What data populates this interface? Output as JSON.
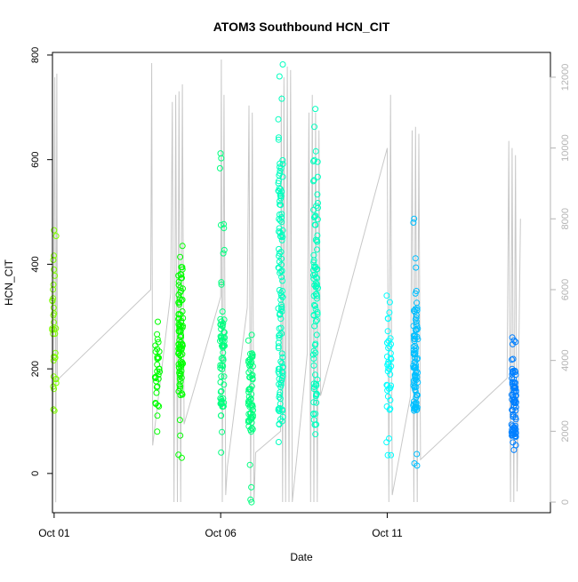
{
  "chart_data": {
    "type": "scatter",
    "title": "ATOM3 Southbound HCN_CIT",
    "xlabel": "Date",
    "ylabel": "HCN_CIT",
    "x_ticks": [
      "Oct 01",
      "Oct 06",
      "Oct 11"
    ],
    "x_tick_days": [
      1,
      6,
      11
    ],
    "xlim_days": [
      0.95,
      15.9
    ],
    "ylim": [
      -75,
      805
    ],
    "y_ticks": [
      0,
      200,
      400,
      600,
      800
    ],
    "y2lim": [
      -300,
      12700
    ],
    "y2_ticks": [
      0,
      2000,
      4000,
      6000,
      8000,
      10000,
      12000
    ],
    "grid": false,
    "legend": "none",
    "colors": {
      "altitude_line": "#c8c8c8",
      "axis": "#000000",
      "right_axis": "#b4b4b4",
      "point_palette": [
        "#7fff00",
        "#00ff00",
        "#00ff7f",
        "#00ffbf",
        "#00ffff",
        "#00bfff",
        "#007fff"
      ]
    },
    "point_series": [
      {
        "day": 1.0,
        "min": 120,
        "max": 465,
        "core_min": 160,
        "core_max": 420,
        "n": 34
      },
      {
        "day": 4.1,
        "min": 80,
        "max": 290,
        "core_min": 130,
        "core_max": 260,
        "n": 32
      },
      {
        "day": 4.8,
        "min": 30,
        "max": 435,
        "core_min": 150,
        "core_max": 400,
        "n": 95
      },
      {
        "day": 6.05,
        "min": 40,
        "max": 612,
        "core_min": 110,
        "core_max": 300,
        "n": 70
      },
      {
        "day": 6.9,
        "min": -55,
        "max": 265,
        "core_min": 80,
        "core_max": 230,
        "n": 70
      },
      {
        "day": 7.8,
        "min": 60,
        "max": 782,
        "core_min": 90,
        "core_max": 600,
        "n": 120
      },
      {
        "day": 8.85,
        "min": 75,
        "max": 697,
        "core_min": 90,
        "core_max": 600,
        "n": 90
      },
      {
        "day": 11.05,
        "min": 35,
        "max": 340,
        "core_min": 90,
        "core_max": 260,
        "n": 40
      },
      {
        "day": 11.85,
        "min": 15,
        "max": 487,
        "core_min": 120,
        "core_max": 320,
        "n": 95
      },
      {
        "day": 14.8,
        "min": 45,
        "max": 260,
        "core_min": 70,
        "core_max": 200,
        "n": 85
      }
    ],
    "altitude_path": [
      [
        0.95,
        -5
      ],
      [
        1.02,
        12000
      ],
      [
        1.05,
        -5
      ],
      [
        1.08,
        12100
      ],
      [
        1.1,
        3450
      ],
      [
        3.9,
        6000
      ],
      [
        3.93,
        12400
      ],
      [
        3.96,
        1600
      ],
      [
        4.5,
        5900
      ],
      [
        4.55,
        11300
      ],
      [
        4.6,
        0
      ],
      [
        4.65,
        11500
      ],
      [
        4.7,
        0
      ],
      [
        4.75,
        11600
      ],
      [
        4.8,
        0
      ],
      [
        4.85,
        11800
      ],
      [
        4.9,
        2200
      ],
      [
        6.0,
        5800
      ],
      [
        6.02,
        12500
      ],
      [
        6.05,
        0
      ],
      [
        6.1,
        11500
      ],
      [
        6.15,
        200
      ],
      [
        6.2,
        1000
      ],
      [
        6.8,
        5500
      ],
      [
        6.85,
        11200
      ],
      [
        6.9,
        0
      ],
      [
        6.95,
        11000
      ],
      [
        7.0,
        0
      ],
      [
        7.05,
        1400
      ],
      [
        7.8,
        2000
      ],
      [
        7.82,
        11500
      ],
      [
        7.86,
        0
      ],
      [
        7.9,
        12000
      ],
      [
        7.95,
        0
      ],
      [
        8.0,
        12300
      ],
      [
        8.05,
        0
      ],
      [
        8.1,
        12200
      ],
      [
        8.15,
        0
      ],
      [
        8.6,
        4200
      ],
      [
        8.65,
        11000
      ],
      [
        8.7,
        0
      ],
      [
        8.75,
        11500
      ],
      [
        8.8,
        0
      ],
      [
        8.85,
        11000
      ],
      [
        8.9,
        0
      ],
      [
        8.95,
        10500
      ],
      [
        9.0,
        3000
      ],
      [
        11.0,
        10000
      ],
      [
        11.05,
        0
      ],
      [
        11.1,
        11500
      ],
      [
        11.15,
        200
      ],
      [
        11.7,
        3000
      ],
      [
        11.75,
        10500
      ],
      [
        11.8,
        0
      ],
      [
        11.85,
        10600
      ],
      [
        11.9,
        0
      ],
      [
        11.95,
        10400
      ],
      [
        12.0,
        1200
      ],
      [
        14.6,
        3500
      ],
      [
        14.65,
        10200
      ],
      [
        14.7,
        0
      ],
      [
        14.75,
        10000
      ],
      [
        14.8,
        0
      ],
      [
        14.85,
        9800
      ],
      [
        14.9,
        300
      ],
      [
        15.0,
        8000
      ]
    ]
  }
}
